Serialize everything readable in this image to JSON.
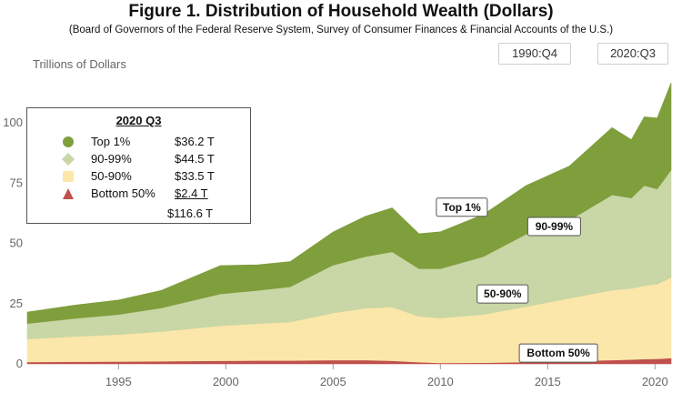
{
  "title": "Figure 1. Distribution of Household Wealth (Dollars)",
  "subtitle": "(Board of Governors of the Federal Reserve System, Survey of Consumer Finances & Financial Accounts of the U.S.)",
  "range": {
    "start_label": "1990:Q4",
    "end_label": "2020:Q3"
  },
  "colors": {
    "top1": "#7f9e3c",
    "p90_99": "#c9d6a6",
    "p50_90": "#fbe7a9",
    "bottom50": "#c0504d"
  },
  "legend": {
    "title": "2020 Q3",
    "items": [
      {
        "name": "Top 1%",
        "value": "$36.2 T",
        "marker": "circle"
      },
      {
        "name": "90-99%",
        "value": "$44.5 T",
        "marker": "diamond"
      },
      {
        "name": "50-90%",
        "value": "$33.5 T",
        "marker": "square"
      },
      {
        "name": "Bottom 50%",
        "value": "$2.4 T",
        "marker": "triangle"
      }
    ],
    "total": "$116.6 T"
  },
  "chart_data": {
    "type": "area",
    "stacked": true,
    "ylabel": "Trillions of Dollars",
    "ylim": [
      0,
      120
    ],
    "xlim": [
      1990.75,
      2020.75
    ],
    "yticks": [
      0,
      25,
      50,
      75,
      100
    ],
    "xticks": [
      1995,
      2000,
      2005,
      2010,
      2015,
      2020
    ],
    "grid": false,
    "legend_position": "top-left",
    "x": [
      1990.75,
      1993,
      1995,
      1997,
      1999.75,
      2001.5,
      2003,
      2005,
      2006.5,
      2007.75,
      2009,
      2010,
      2012,
      2014,
      2016,
      2018,
      2018.9,
      2019.5,
      2020.1,
      2020.75
    ],
    "series": [
      {
        "name": "Bottom 50%",
        "values": [
          0.8,
          0.9,
          1.0,
          1.1,
          1.3,
          1.4,
          1.4,
          1.6,
          1.6,
          1.3,
          0.7,
          0.4,
          0.5,
          0.8,
          1.2,
          1.6,
          1.8,
          2.0,
          2.1,
          2.4
        ]
      },
      {
        "name": "50-90%",
        "values": [
          9.5,
          10.5,
          11.2,
          12.3,
          14.5,
          15.3,
          16.0,
          19.5,
          21.5,
          22.3,
          19.0,
          18.6,
          20.0,
          23.0,
          26.0,
          29.0,
          29.5,
          30.5,
          31.0,
          33.5
        ]
      },
      {
        "name": "90-99%",
        "values": [
          6.4,
          7.5,
          8.3,
          9.8,
          13.2,
          13.8,
          14.6,
          19.9,
          21.4,
          22.9,
          19.8,
          20.5,
          24.0,
          30.0,
          32.3,
          39.5,
          37.5,
          41.5,
          39.5,
          44.5
        ]
      },
      {
        "name": "Top 1%",
        "values": [
          4.8,
          5.5,
          6.0,
          7.3,
          11.8,
          10.6,
          10.4,
          13.7,
          16.7,
          18.2,
          14.5,
          15.3,
          17.5,
          20.2,
          22.5,
          27.9,
          24.2,
          28.5,
          29.4,
          36.2
        ]
      }
    ],
    "annotations": [
      "Top 1%",
      "90-99%",
      "50-90%",
      "Bottom 50%"
    ]
  }
}
